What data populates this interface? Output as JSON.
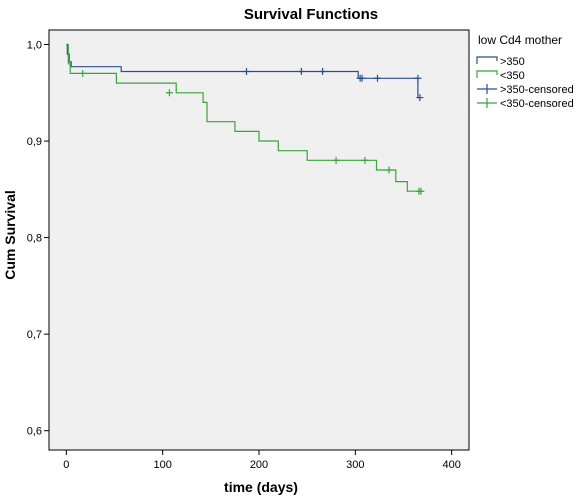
{
  "chart_data": {
    "type": "line",
    "title": "Survival Functions",
    "xlabel": "time (days)",
    "ylabel": "Cum Survival",
    "xlim": [
      -18,
      418
    ],
    "ylim": [
      0.58,
      1.015
    ],
    "x_ticks": [
      0,
      100,
      200,
      300,
      400
    ],
    "x_tick_labels": [
      "0",
      "100",
      "200",
      "300",
      "400"
    ],
    "y_ticks": [
      0.6,
      0.7,
      0.8,
      0.9,
      1.0
    ],
    "y_tick_labels": [
      "0,6",
      "0,7",
      "0,8",
      "0,9",
      "1,0"
    ],
    "grid": false,
    "legend": {
      "title": "low Cd4 mother",
      "placement": "right",
      "entries": [
        {
          "label": ">350",
          "kind": "step",
          "color": "#2e4d8f"
        },
        {
          "label": "<350",
          "kind": "step",
          "color": "#3aa53a"
        },
        {
          "label": ">350-censored",
          "kind": "censor",
          "color": "#2e4d8f"
        },
        {
          "label": "<350-censored",
          "kind": "censor",
          "color": "#3aa53a"
        }
      ]
    },
    "series": [
      {
        "name": ">350",
        "color": "#2e4d8f",
        "steps": [
          [
            0,
            1.0
          ],
          [
            1,
            0.99
          ],
          [
            3,
            0.982
          ],
          [
            5,
            0.977
          ],
          [
            57,
            0.972
          ],
          [
            303,
            0.965
          ],
          [
            365,
            0.945
          ],
          [
            367,
            0.945
          ]
        ],
        "censored": [
          [
            187,
            0.972
          ],
          [
            244,
            0.972
          ],
          [
            266,
            0.972
          ],
          [
            305,
            0.965
          ],
          [
            307,
            0.965
          ],
          [
            323,
            0.965
          ],
          [
            365,
            0.965
          ],
          [
            367,
            0.945
          ]
        ]
      },
      {
        "name": "<350",
        "color": "#3aa53a",
        "steps": [
          [
            0,
            1.0
          ],
          [
            2,
            0.98
          ],
          [
            4,
            0.97
          ],
          [
            52,
            0.96
          ],
          [
            114,
            0.95
          ],
          [
            142,
            0.94
          ],
          [
            146,
            0.92
          ],
          [
            175,
            0.91
          ],
          [
            200,
            0.9
          ],
          [
            220,
            0.89
          ],
          [
            250,
            0.88
          ],
          [
            322,
            0.87
          ],
          [
            342,
            0.858
          ],
          [
            354,
            0.848
          ],
          [
            369,
            0.848
          ]
        ],
        "censored": [
          [
            17,
            0.97
          ],
          [
            107,
            0.95
          ],
          [
            280,
            0.88
          ],
          [
            310,
            0.88
          ],
          [
            335,
            0.87
          ],
          [
            366,
            0.848
          ],
          [
            368,
            0.848
          ]
        ]
      }
    ]
  }
}
